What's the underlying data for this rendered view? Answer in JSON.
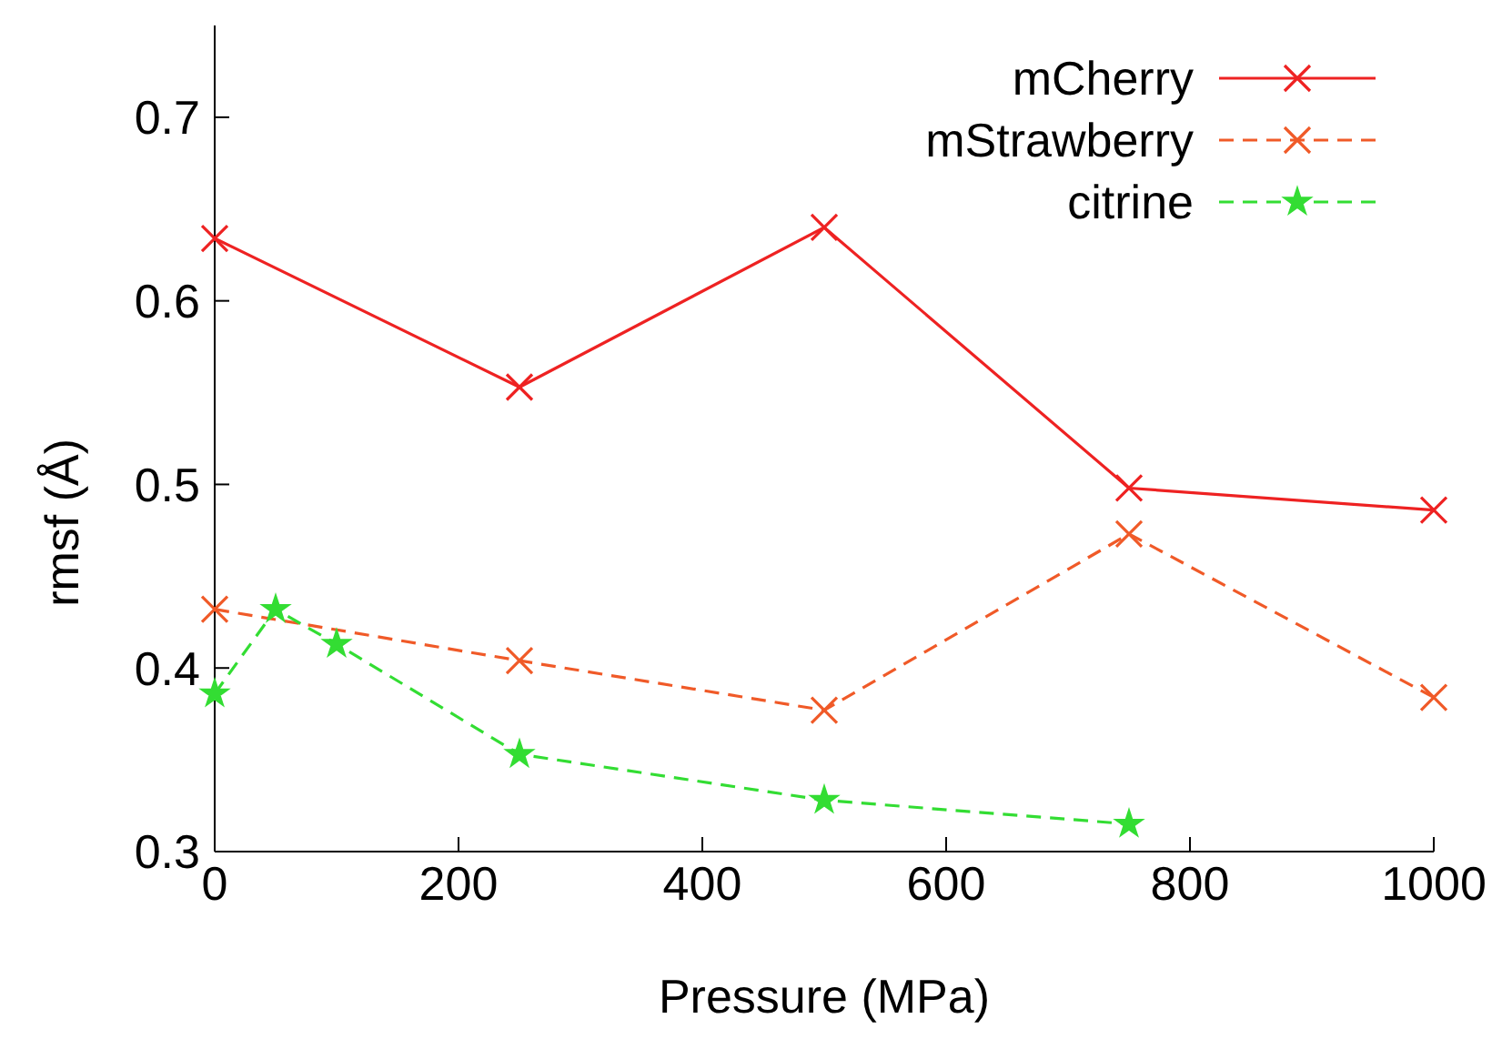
{
  "chart_data": {
    "type": "line",
    "xlabel": "Pressure (MPa)",
    "ylabel": "rmsf (Å)",
    "xlim": [
      0,
      1000
    ],
    "xticks": [
      0,
      200,
      400,
      600,
      800,
      1000
    ],
    "ylim": [
      0.3,
      0.75
    ],
    "yticks": [
      0.3,
      0.4,
      0.5,
      0.6,
      0.7
    ],
    "grid": false,
    "legend": "top right",
    "series": [
      {
        "name": "mCherry",
        "color": "#ee2222",
        "marker": "cross",
        "line_style": "solid",
        "x": [
          0,
          250,
          500,
          750,
          1000
        ],
        "values": [
          0.634,
          0.553,
          0.64,
          0.498,
          0.486
        ]
      },
      {
        "name": "mStrawberry",
        "color": "#f05a28",
        "marker": "cross",
        "line_style": "dashed",
        "x": [
          0,
          250,
          500,
          750,
          1000
        ],
        "values": [
          0.432,
          0.404,
          0.377,
          0.473,
          0.384
        ]
      },
      {
        "name": "citrine",
        "color": "#33dd33",
        "marker": "star",
        "line_style": "dashed",
        "x": [
          0,
          50,
          100,
          250,
          500,
          750
        ],
        "values": [
          0.386,
          0.432,
          0.413,
          0.353,
          0.328,
          0.315
        ]
      }
    ]
  }
}
